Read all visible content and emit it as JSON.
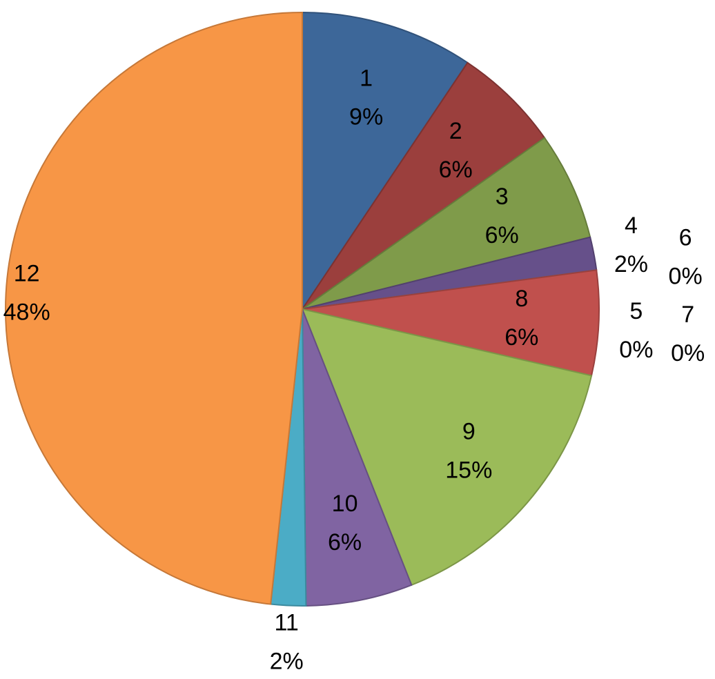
{
  "chart_data": {
    "type": "pie",
    "categories": [
      "1",
      "2",
      "3",
      "4",
      "5",
      "6",
      "7",
      "8",
      "9",
      "10",
      "11",
      "12"
    ],
    "values": [
      9.4,
      5.8,
      5.9,
      1.8,
      0,
      0,
      0,
      5.7,
      15.4,
      5.8,
      1.9,
      48.3
    ],
    "value_labels": [
      "9%",
      "6%",
      "6%",
      "2%",
      "0%",
      "0%",
      "0%",
      "6%",
      "15%",
      "6%",
      "2%",
      "48%"
    ],
    "colors": [
      "#3d6799",
      "#9b3f3d",
      "#7f9b4a",
      "#66508a",
      "#3893aa",
      "#d97a30",
      "#4f81bd",
      "#c0504d",
      "#9bbb59",
      "#8064a2",
      "#4bacc6",
      "#f79646"
    ]
  }
}
